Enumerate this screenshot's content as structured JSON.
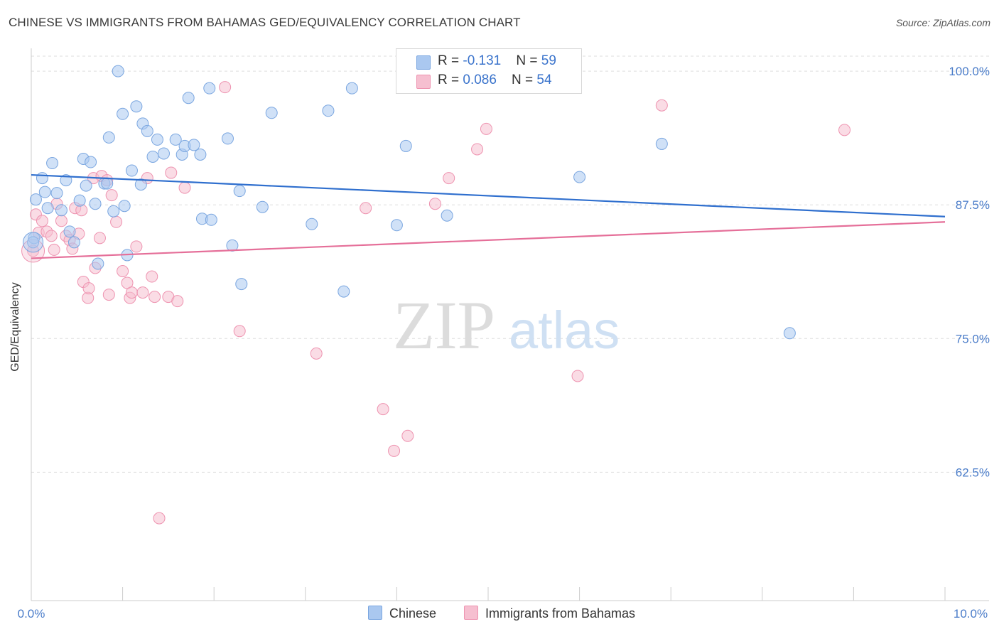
{
  "header": {
    "title": "CHINESE VS IMMIGRANTS FROM BAHAMAS GED/EQUIVALENCY CORRELATION CHART",
    "source": "Source: ZipAtlas.com"
  },
  "legend": {
    "chinese": {
      "r_label": "R = ",
      "r_value": "-0.131",
      "n_label": "N = ",
      "n_value": "59"
    },
    "bahamas": {
      "r_label": "R = ",
      "r_value": "0.086",
      "n_label": "N = ",
      "n_value": "54"
    }
  },
  "bottom_legend": {
    "chinese": "Chinese",
    "bahamas": "Immigrants from Bahamas"
  },
  "watermark": {
    "zip": "ZIP",
    "atlas": "atlas"
  },
  "colors": {
    "blue_fill": "#aac8f0",
    "blue_stroke": "#7aa6e0",
    "blue_line": "#2f6fce",
    "pink_fill": "#f6bfd0",
    "pink_stroke": "#ee93b0",
    "pink_line": "#e56f99",
    "axis_text": "#4a7cc9",
    "grid": "#dddddd"
  },
  "chart_data": {
    "type": "scatter",
    "title": "CHINESE VS IMMIGRANTS FROM BAHAMAS GED/EQUIVALENCY CORRELATION CHART",
    "xlabel": "",
    "ylabel": "GED/Equivalency",
    "xlim": [
      0,
      10
    ],
    "ylim": [
      50.5,
      102
    ],
    "x_tick_labels": [
      "0.0%",
      "10.0%"
    ],
    "y_ticks": [
      62.5,
      75.0,
      87.5,
      100.0
    ],
    "y_tick_labels": [
      "62.5%",
      "75.0%",
      "87.5%",
      "100.0%"
    ],
    "grid": true,
    "legend_position": "top-center",
    "series": [
      {
        "name": "Chinese",
        "r": -0.131,
        "n": 59,
        "trend": {
          "x": [
            0,
            10
          ],
          "y": [
            90.3,
            86.4
          ]
        },
        "points": [
          [
            0.05,
            88.0
          ],
          [
            0.03,
            84.4
          ],
          [
            0.12,
            90.0
          ],
          [
            0.15,
            88.7
          ],
          [
            0.18,
            87.2
          ],
          [
            0.23,
            91.4
          ],
          [
            0.28,
            88.6
          ],
          [
            0.33,
            87.0
          ],
          [
            0.38,
            89.8
          ],
          [
            0.42,
            85.0
          ],
          [
            0.47,
            84.0
          ],
          [
            0.53,
            87.9
          ],
          [
            0.57,
            91.8
          ],
          [
            0.6,
            89.3
          ],
          [
            0.65,
            91.5
          ],
          [
            0.7,
            87.6
          ],
          [
            0.73,
            82.0
          ],
          [
            0.8,
            89.5
          ],
          [
            0.83,
            89.5
          ],
          [
            0.85,
            93.8
          ],
          [
            0.9,
            86.9
          ],
          [
            0.95,
            100.0
          ],
          [
            1.0,
            96.0
          ],
          [
            1.02,
            87.4
          ],
          [
            1.05,
            82.8
          ],
          [
            1.1,
            90.7
          ],
          [
            1.15,
            96.7
          ],
          [
            1.2,
            89.4
          ],
          [
            1.22,
            95.1
          ],
          [
            1.27,
            94.4
          ],
          [
            1.33,
            92.0
          ],
          [
            1.38,
            93.6
          ],
          [
            1.45,
            92.3
          ],
          [
            1.58,
            93.6
          ],
          [
            1.65,
            92.2
          ],
          [
            1.68,
            93.0
          ],
          [
            1.72,
            97.5
          ],
          [
            1.78,
            93.1
          ],
          [
            1.85,
            92.2
          ],
          [
            1.87,
            86.2
          ],
          [
            1.97,
            86.1
          ],
          [
            1.95,
            98.4
          ],
          [
            2.15,
            93.7
          ],
          [
            2.2,
            83.7
          ],
          [
            2.28,
            88.8
          ],
          [
            2.3,
            80.1
          ],
          [
            2.53,
            87.3
          ],
          [
            2.63,
            96.1
          ],
          [
            3.07,
            85.7
          ],
          [
            3.25,
            96.3
          ],
          [
            3.42,
            79.4
          ],
          [
            3.51,
            98.4
          ],
          [
            4.0,
            85.6
          ],
          [
            4.1,
            93.0
          ],
          [
            4.55,
            86.5
          ],
          [
            6.0,
            90.1
          ],
          [
            6.9,
            93.2
          ],
          [
            8.3,
            75.5
          ],
          [
            0.02,
            84.0
          ]
        ]
      },
      {
        "name": "Immigrants from Bahamas",
        "r": 0.086,
        "n": 54,
        "trend": {
          "x": [
            0,
            10
          ],
          "y": [
            82.5,
            85.9
          ]
        },
        "points": [
          [
            0.02,
            83.2
          ],
          [
            0.05,
            86.6
          ],
          [
            0.08,
            84.9
          ],
          [
            0.12,
            86.0
          ],
          [
            0.17,
            85.0
          ],
          [
            0.22,
            84.6
          ],
          [
            0.25,
            83.3
          ],
          [
            0.28,
            87.6
          ],
          [
            0.33,
            86.0
          ],
          [
            0.38,
            84.6
          ],
          [
            0.42,
            84.2
          ],
          [
            0.45,
            83.4
          ],
          [
            0.48,
            87.2
          ],
          [
            0.52,
            84.8
          ],
          [
            0.55,
            87.0
          ],
          [
            0.57,
            80.3
          ],
          [
            0.62,
            78.8
          ],
          [
            0.63,
            79.7
          ],
          [
            0.68,
            90.0
          ],
          [
            0.7,
            81.6
          ],
          [
            0.75,
            84.4
          ],
          [
            0.77,
            90.2
          ],
          [
            0.83,
            89.8
          ],
          [
            0.85,
            79.1
          ],
          [
            0.88,
            88.4
          ],
          [
            0.93,
            85.9
          ],
          [
            1.0,
            81.3
          ],
          [
            1.05,
            80.2
          ],
          [
            1.08,
            78.8
          ],
          [
            1.1,
            79.3
          ],
          [
            1.15,
            83.6
          ],
          [
            1.22,
            79.3
          ],
          [
            1.27,
            90.0
          ],
          [
            1.32,
            80.8
          ],
          [
            1.35,
            78.9
          ],
          [
            1.4,
            58.2
          ],
          [
            1.5,
            78.9
          ],
          [
            1.53,
            90.5
          ],
          [
            1.6,
            78.5
          ],
          [
            1.68,
            89.1
          ],
          [
            2.12,
            98.5
          ],
          [
            2.28,
            75.7
          ],
          [
            3.12,
            73.6
          ],
          [
            3.66,
            87.2
          ],
          [
            3.85,
            68.4
          ],
          [
            3.97,
            64.5
          ],
          [
            4.12,
            65.9
          ],
          [
            4.42,
            87.6
          ],
          [
            4.57,
            90.0
          ],
          [
            4.88,
            92.7
          ],
          [
            4.98,
            94.6
          ],
          [
            5.98,
            71.5
          ],
          [
            6.9,
            96.8
          ],
          [
            8.9,
            94.5
          ]
        ]
      }
    ]
  }
}
